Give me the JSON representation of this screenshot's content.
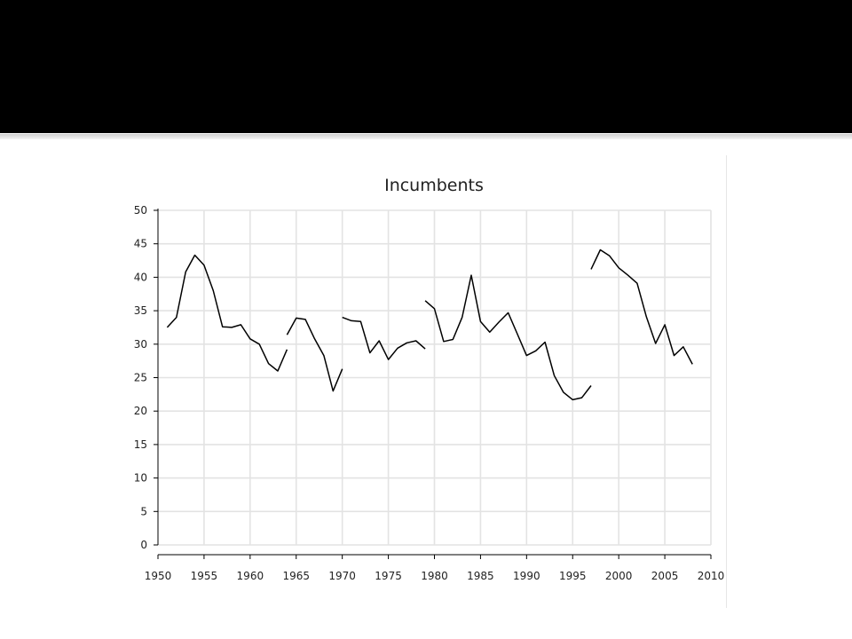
{
  "slide": {
    "header_color": "#000000"
  },
  "chart_data": {
    "type": "line",
    "title": "Incumbents",
    "xlabel": "",
    "ylabel": "",
    "xlim": [
      1950,
      2010
    ],
    "ylim": [
      0,
      50
    ],
    "x_ticks": [
      1950,
      1955,
      1960,
      1965,
      1970,
      1975,
      1980,
      1985,
      1990,
      1995,
      2000,
      2005,
      2010
    ],
    "y_ticks": [
      0,
      5,
      10,
      15,
      20,
      25,
      30,
      35,
      40,
      45,
      50
    ],
    "grid": true,
    "line_color": "#000000",
    "segments": [
      {
        "x": [
          1951,
          1952,
          1953,
          1954,
          1955,
          1956,
          1957,
          1958,
          1959,
          1960,
          1961,
          1962,
          1963,
          1964
        ],
        "y": [
          32.5,
          34.0,
          40.8,
          43.3,
          41.8,
          38.0,
          32.6,
          32.5,
          32.9,
          30.8,
          30.0,
          27.1,
          26.0,
          29.2
        ]
      },
      {
        "x": [
          1964,
          1965,
          1966,
          1967,
          1968,
          1969,
          1970
        ],
        "y": [
          31.4,
          33.9,
          33.7,
          30.8,
          28.3,
          23.0,
          26.3
        ]
      },
      {
        "x": [
          1970,
          1971,
          1972,
          1973,
          1974,
          1975,
          1976,
          1977,
          1978,
          1979
        ],
        "y": [
          34.0,
          33.5,
          33.4,
          28.7,
          30.5,
          27.7,
          29.4,
          30.2,
          30.5,
          29.3
        ]
      },
      {
        "x": [
          1979,
          1980,
          1981,
          1982,
          1983,
          1984,
          1985,
          1986,
          1987,
          1988,
          1989,
          1990,
          1991,
          1992,
          1993,
          1994,
          1995,
          1996,
          1997
        ],
        "y": [
          36.5,
          35.3,
          30.4,
          30.7,
          34.0,
          40.3,
          33.4,
          31.8,
          33.3,
          34.7,
          31.5,
          28.3,
          29.0,
          30.3,
          25.3,
          22.8,
          21.7,
          22.0,
          23.8
        ]
      },
      {
        "x": [
          1997,
          1998,
          1999,
          2000,
          2001,
          2002,
          2003,
          2004,
          2005,
          2006,
          2007,
          2008
        ],
        "y": [
          41.2,
          44.1,
          43.2,
          41.4,
          40.3,
          39.1,
          34.1,
          30.1,
          32.9,
          28.3,
          29.6,
          27.0
        ]
      }
    ]
  }
}
